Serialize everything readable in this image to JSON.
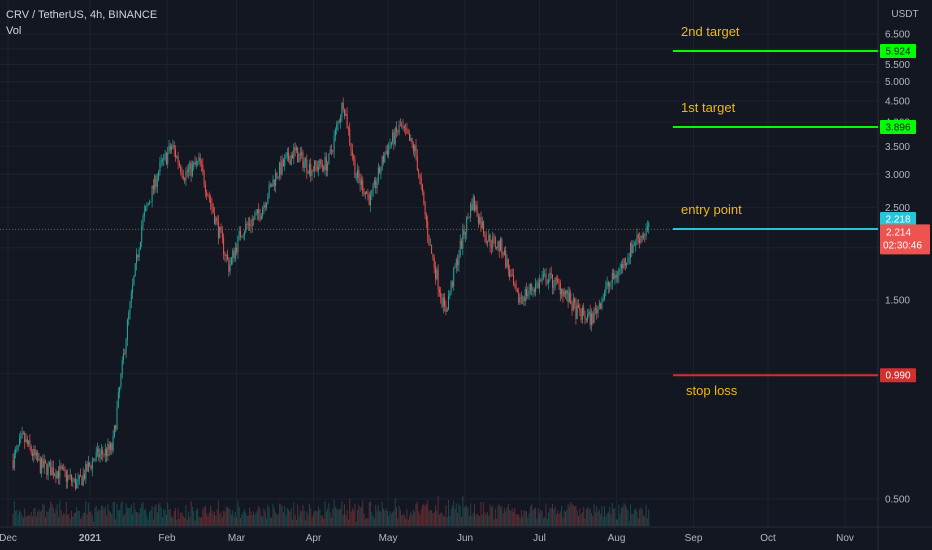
{
  "header": {
    "symbol": "CRV / TetherUS, 4h, BINANCE",
    "volume_label": "Vol"
  },
  "colors": {
    "background": "#131722",
    "grid": "#1e222d",
    "up": "#26a69a",
    "down": "#ef5350",
    "target": "#00ff00",
    "entry": "#26c6da",
    "stop": "#d32f2f",
    "annotation_text": "#f0b90b"
  },
  "chart_data": {
    "type": "candlestick",
    "title": "CRV / TetherUS, 4h, BINANCE",
    "y_scale": "log",
    "y_currency": "USDT",
    "ylim": [
      0.37,
      6.5
    ],
    "x_tick_labels": [
      "Dec",
      "2021",
      "Feb",
      "Mar",
      "Apr",
      "May",
      "Jun",
      "Jul",
      "Aug",
      "Sep",
      "Oct",
      "Nov"
    ],
    "y_tick_labels": [
      "0.500",
      "1.000",
      "1.500",
      "2.000",
      "2.500",
      "3.000",
      "3.500",
      "4.000",
      "4.500",
      "5.000",
      "5.500",
      "6.000",
      "6.500"
    ],
    "y_tick_values": [
      0.5,
      1.0,
      1.5,
      2.0,
      2.5,
      3.0,
      3.5,
      4.0,
      4.5,
      5.0,
      5.5,
      6.0,
      6.5
    ],
    "price_path": {
      "description_points": [
        [
          "2020-12-01",
          0.62
        ],
        [
          "2020-12-05",
          0.7
        ],
        [
          "2020-12-12",
          0.6
        ],
        [
          "2020-12-20",
          0.58
        ],
        [
          "2020-12-27",
          0.54
        ],
        [
          "2021-01-03",
          0.63
        ],
        [
          "2021-01-10",
          0.66
        ],
        [
          "2021-01-16",
          1.3
        ],
        [
          "2021-01-22",
          2.3
        ],
        [
          "2021-01-29",
          3.1
        ],
        [
          "2021-02-03",
          3.5
        ],
        [
          "2021-02-08",
          3.0
        ],
        [
          "2021-02-14",
          3.2
        ],
        [
          "2021-02-20",
          2.4
        ],
        [
          "2021-02-26",
          1.8
        ],
        [
          "2021-03-03",
          2.2
        ],
        [
          "2021-03-10",
          2.4
        ],
        [
          "2021-03-17",
          3.0
        ],
        [
          "2021-03-24",
          3.4
        ],
        [
          "2021-03-31",
          3.1
        ],
        [
          "2021-04-07",
          3.2
        ],
        [
          "2021-04-13",
          4.5
        ],
        [
          "2021-04-18",
          3.0
        ],
        [
          "2021-04-24",
          2.6
        ],
        [
          "2021-04-30",
          3.4
        ],
        [
          "2021-05-06",
          3.9
        ],
        [
          "2021-05-12",
          3.4
        ],
        [
          "2021-05-18",
          2.0
        ],
        [
          "2021-05-24",
          1.4
        ],
        [
          "2021-05-30",
          2.0
        ],
        [
          "2021-06-04",
          2.6
        ],
        [
          "2021-06-10",
          2.1
        ],
        [
          "2021-06-16",
          2.0
        ],
        [
          "2021-06-22",
          1.5
        ],
        [
          "2021-06-28",
          1.6
        ],
        [
          "2021-07-04",
          1.7
        ],
        [
          "2021-07-10",
          1.6
        ],
        [
          "2021-07-16",
          1.4
        ],
        [
          "2021-07-22",
          1.35
        ],
        [
          "2021-07-28",
          1.6
        ],
        [
          "2021-08-03",
          1.8
        ],
        [
          "2021-08-09",
          2.1
        ],
        [
          "2021-08-14",
          2.214
        ]
      ]
    },
    "last_price": "2.214",
    "countdown": "02:30:46",
    "levels": [
      {
        "label": "2nd target",
        "value": 5.924,
        "tag": "5.924",
        "kind": "target"
      },
      {
        "label": "1st target",
        "value": 3.896,
        "tag": "3.896",
        "kind": "target"
      },
      {
        "label": "entry point",
        "value": 2.218,
        "tag": "2.218",
        "kind": "entry"
      },
      {
        "label": "stop loss",
        "value": 0.99,
        "tag": "0.990",
        "kind": "stop"
      }
    ]
  }
}
